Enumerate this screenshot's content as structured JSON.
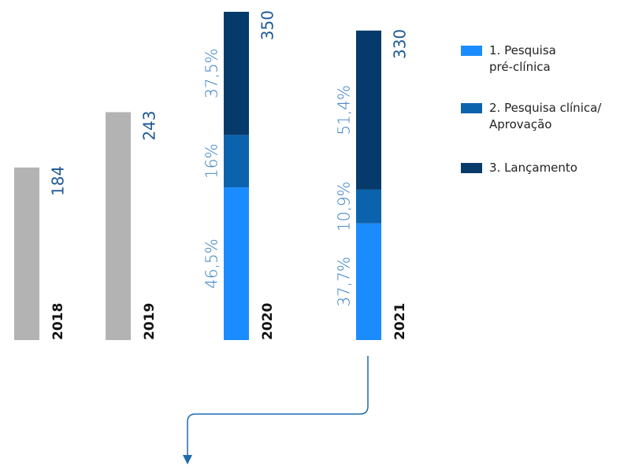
{
  "chart_data": {
    "type": "bar",
    "categories": [
      "2018",
      "2019",
      "2020",
      "2021"
    ],
    "values": [
      184,
      243,
      350,
      330
    ],
    "color": "#b3b3b3",
    "series": [
      {
        "name": "1. Pesquisa pré-clínica",
        "color": "#1a8cff",
        "values": [
          null,
          null,
          46.5,
          37.7
        ],
        "value_labels": [
          null,
          null,
          "46,5%",
          "37,7%"
        ]
      },
      {
        "name": "2. Pesquisa clínica/ Aprovação",
        "color": "#0b63ad",
        "values": [
          null,
          null,
          16,
          10.9
        ],
        "value_labels": [
          null,
          null,
          "16%",
          "10,9%"
        ]
      },
      {
        "name": "3. Lançamento",
        "color": "#063a6b",
        "values": [
          null,
          null,
          37.5,
          51.4
        ],
        "value_labels": [
          null,
          null,
          "37,5%",
          "51,4%"
        ]
      }
    ]
  }
}
